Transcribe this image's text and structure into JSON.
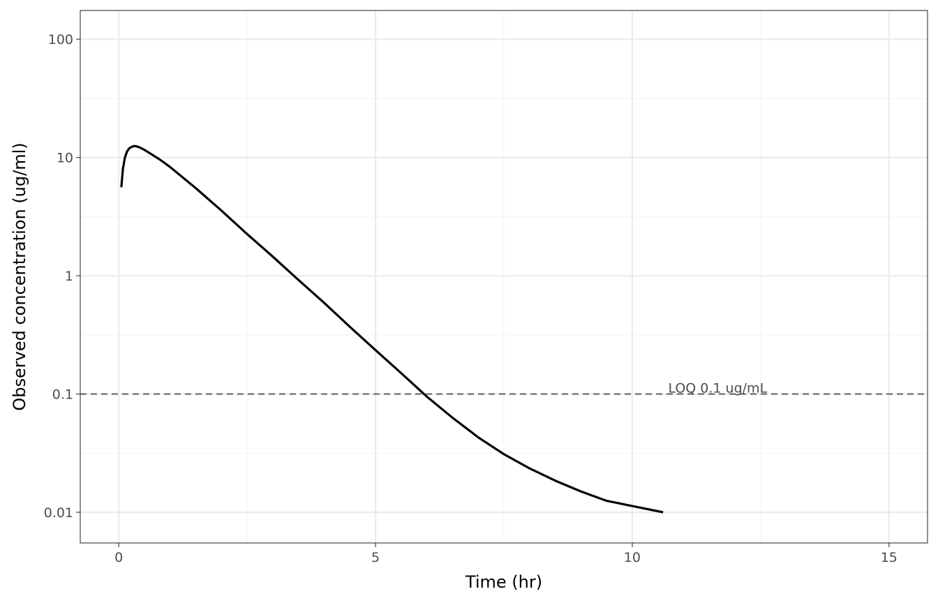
{
  "chart_data": {
    "type": "line",
    "title": "",
    "xlabel": "Time (hr)",
    "ylabel": "Observed concentration (ug/ml)",
    "xlim": [
      -0.75,
      15.75
    ],
    "ylim": [
      0.0055,
      175
    ],
    "y_scale": "log10",
    "grid": true,
    "x_ticks": [
      0,
      5,
      10,
      15
    ],
    "x_tick_labels": [
      "0",
      "5",
      "10",
      "15"
    ],
    "y_ticks": [
      0.01,
      0.1,
      1,
      10,
      100
    ],
    "y_tick_labels": [
      "0.01",
      "0.1",
      "1",
      "10",
      "100"
    ],
    "series": [
      {
        "color": "#000000",
        "x": [
          0.05,
          0.08,
          0.12,
          0.16,
          0.2,
          0.25,
          0.3,
          0.35,
          0.4,
          0.5,
          0.6,
          0.8,
          1.0,
          1.5,
          2.0,
          2.5,
          3.0,
          3.5,
          4.0,
          4.5,
          5.0,
          5.5,
          6.0,
          6.5,
          7.0,
          7.5,
          8.0,
          8.5,
          9.0,
          9.5,
          10.0,
          10.6
        ],
        "y": [
          5.6,
          8.0,
          10.0,
          11.2,
          11.9,
          12.3,
          12.5,
          12.4,
          12.2,
          11.6,
          10.9,
          9.6,
          8.3,
          5.5,
          3.55,
          2.25,
          1.45,
          0.92,
          0.59,
          0.37,
          0.235,
          0.15,
          0.095,
          0.063,
          0.043,
          0.031,
          0.0235,
          0.0185,
          0.015,
          0.0125,
          0.0113,
          0.01
        ]
      }
    ],
    "reference_line": {
      "y": 0.1,
      "color": "#666666",
      "style": "dashed",
      "label": "LOQ 0.1 ug/mL",
      "label_x": 10.7
    },
    "colors": {
      "grid_major": "#ebebeb",
      "grid_minor": "#f3f3f3",
      "panel_border": "#333333",
      "tick": "#333333"
    }
  }
}
